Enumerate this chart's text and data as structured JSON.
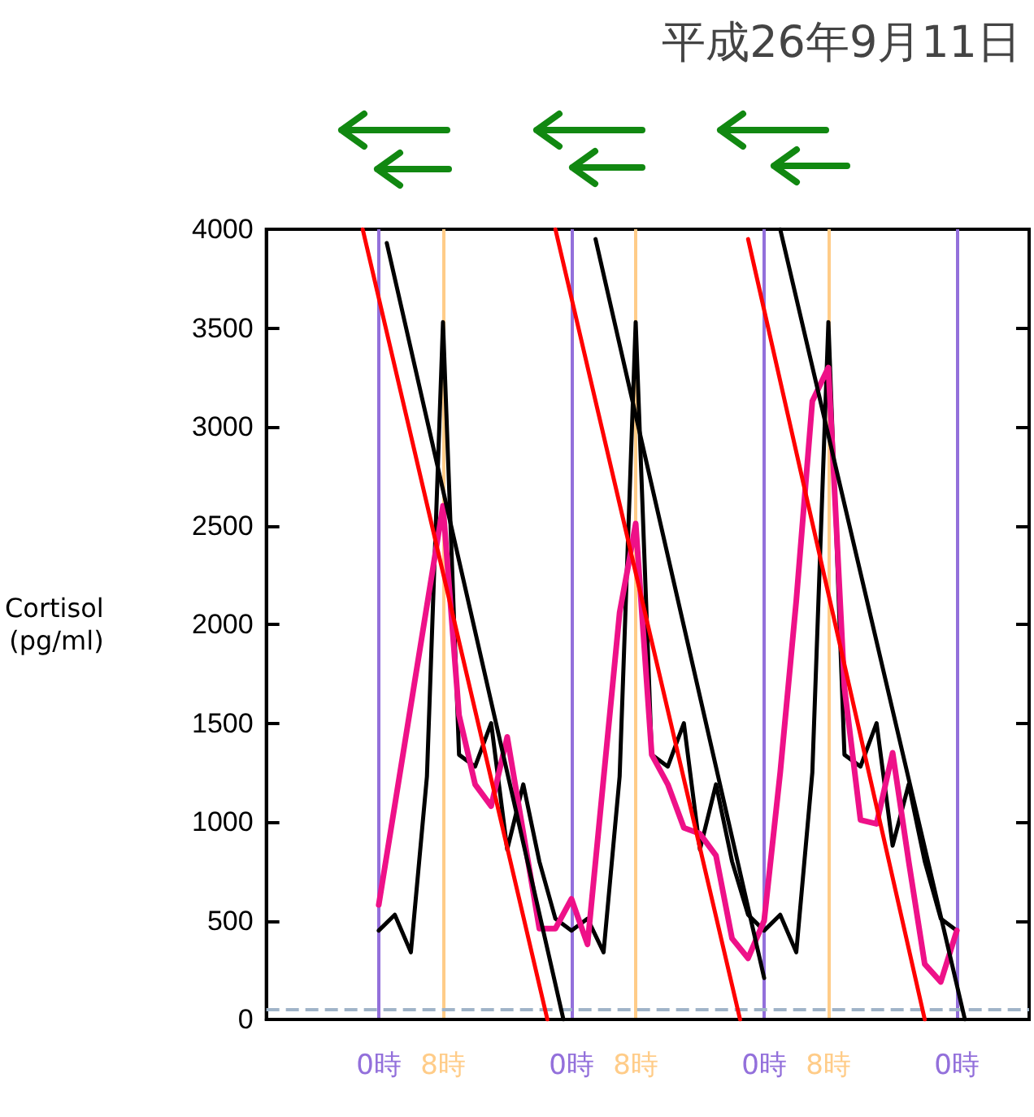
{
  "chart_data": {
    "type": "line",
    "ylabel": "Cortisol\n(pg/ml)",
    "annotations": [
      "平成26年9月11日"
    ],
    "categories": [
      null,
      null,
      null,
      null,
      null,
      null,
      null,
      null,
      null,
      null,
      null,
      null,
      null,
      null,
      "0時",
      null,
      null,
      null,
      null,
      null,
      null,
      null,
      "8時",
      null,
      null,
      null,
      null,
      null,
      null,
      null,
      null,
      null,
      null,
      null,
      null,
      null,
      null,
      null,
      "0時",
      null,
      null,
      null,
      null,
      null,
      null,
      null,
      "8時",
      null,
      null,
      null,
      null,
      null,
      null,
      null,
      null,
      null,
      null,
      null,
      null,
      null,
      null,
      null,
      "0時",
      null,
      null,
      null,
      null,
      null,
      null,
      null,
      "8時",
      null,
      null,
      null,
      null,
      null,
      null,
      null,
      null,
      null,
      null,
      null,
      null,
      null,
      null,
      null,
      "0時",
      null,
      null,
      null,
      null,
      null,
      null,
      null,
      null,
      null
    ],
    "ylim": [
      0,
      4000
    ],
    "yticks": [
      0,
      500,
      1000,
      1500,
      2000,
      2500,
      3000,
      3500,
      4000
    ],
    "grid": "x",
    "marker": "none",
    "line_style": "solid",
    "ref_lines": [
      {
        "axis": "y",
        "value": 50,
        "color": "#a0b4c8",
        "line_style": "dashed"
      }
    ],
    "series": [
      {
        "color": "#000000",
        "values": [
          null,
          null,
          null,
          null,
          null,
          null,
          null,
          null,
          null,
          null,
          null,
          null,
          null,
          null,
          450,
          null,
          530,
          null,
          340,
          null,
          1230,
          null,
          3530,
          null,
          1340,
          null,
          1280,
          null,
          1500,
          null,
          860,
          null,
          1190,
          null,
          800,
          null,
          510,
          null,
          450,
          null,
          510,
          null,
          340,
          null,
          1230,
          null,
          3530,
          null,
          1340,
          null,
          1280,
          null,
          1500,
          null,
          860,
          null,
          1190,
          null,
          800,
          null,
          530,
          null,
          450,
          null,
          530,
          null,
          340,
          null,
          1250,
          null,
          3530,
          null,
          1340,
          null,
          1280,
          null,
          1500,
          null,
          880,
          null,
          1190,
          null,
          800,
          null,
          510,
          null,
          450,
          null,
          null,
          null,
          null,
          null,
          null,
          null,
          null,
          null
        ]
      },
      {
        "color": "#ee1188",
        "values": [
          null,
          null,
          null,
          null,
          null,
          null,
          null,
          null,
          null,
          null,
          null,
          null,
          null,
          null,
          580,
          null,
          null,
          null,
          null,
          null,
          null,
          null,
          2600,
          null,
          1540,
          null,
          1190,
          null,
          1080,
          null,
          1430,
          null,
          null,
          null,
          460,
          null,
          460,
          null,
          610,
          null,
          380,
          null,
          null,
          null,
          2060,
          2280,
          2510,
          null,
          1340,
          null,
          1190,
          null,
          970,
          null,
          940,
          null,
          830,
          null,
          410,
          null,
          310,
          null,
          500,
          null,
          1250,
          null,
          2120,
          null,
          3130,
          null,
          3300,
          null,
          1680,
          null,
          1010,
          null,
          990,
          null,
          1350,
          null,
          800,
          null,
          280,
          null,
          190,
          null,
          450,
          null,
          null,
          null,
          null,
          null,
          null,
          null,
          null,
          null
        ]
      },
      {
        "color": "#ff0000",
        "values": [
          null,
          null,
          null,
          null,
          null,
          null,
          null,
          null,
          null,
          null,
          null,
          null,
          4000,
          null,
          null,
          null,
          null,
          null,
          null,
          null,
          null,
          null,
          null,
          null,
          null,
          null,
          null,
          null,
          null,
          null,
          null,
          null,
          null,
          null,
          null,
          0,
          null,
          null,
          null,
          null,
          null,
          null,
          null,
          null,
          null,
          null,
          null,
          null,
          null,
          null,
          null,
          null,
          null,
          null,
          null,
          null,
          null,
          null,
          null,
          null,
          null,
          null,
          null,
          null,
          null,
          null,
          null,
          null,
          null,
          null,
          null,
          null,
          null,
          null,
          null,
          null,
          null,
          null,
          null,
          null,
          null,
          null,
          null,
          null,
          null,
          null,
          null,
          null,
          null,
          null,
          null,
          null,
          null,
          null,
          null,
          null
        ]
      },
      {
        "color": "#000000",
        "values": [
          null,
          null,
          null,
          null,
          null,
          null,
          null,
          null,
          null,
          null,
          null,
          null,
          null,
          null,
          null,
          3930,
          null,
          null,
          null,
          null,
          null,
          null,
          null,
          null,
          null,
          null,
          null,
          null,
          null,
          null,
          null,
          null,
          null,
          null,
          null,
          null,
          null,
          0,
          null,
          null,
          null,
          null,
          null,
          null,
          null,
          null,
          null,
          null,
          null,
          null,
          null,
          null,
          null,
          null,
          null,
          null,
          null,
          null,
          null,
          null,
          null,
          null,
          null,
          null,
          null,
          null,
          null,
          null,
          null,
          null,
          null,
          null,
          null,
          null,
          null,
          null,
          null,
          null,
          null,
          null,
          null,
          null,
          null,
          null,
          null,
          null,
          null,
          null,
          null,
          null,
          null,
          null,
          null,
          null,
          null,
          null
        ]
      },
      {
        "color": "#ff0000",
        "values": [
          null,
          null,
          null,
          null,
          null,
          null,
          null,
          null,
          null,
          null,
          null,
          null,
          null,
          null,
          null,
          null,
          null,
          null,
          null,
          null,
          null,
          null,
          null,
          null,
          null,
          null,
          null,
          null,
          null,
          null,
          null,
          null,
          null,
          null,
          null,
          null,
          4000,
          null,
          null,
          null,
          null,
          null,
          null,
          null,
          null,
          null,
          null,
          null,
          null,
          null,
          null,
          null,
          null,
          null,
          null,
          null,
          null,
          null,
          null,
          0,
          null,
          null,
          null,
          null,
          null,
          null,
          null,
          null,
          null,
          null,
          null,
          null,
          null,
          null,
          null,
          null,
          null,
          null,
          null,
          null,
          null,
          null,
          null,
          null,
          null,
          null,
          null,
          null,
          null,
          null,
          null,
          null,
          null,
          null,
          null,
          null
        ]
      },
      {
        "color": "#000000",
        "values": [
          null,
          null,
          null,
          null,
          null,
          null,
          null,
          null,
          null,
          null,
          null,
          null,
          null,
          null,
          null,
          null,
          null,
          null,
          null,
          null,
          null,
          null,
          null,
          null,
          null,
          null,
          null,
          null,
          null,
          null,
          null,
          null,
          null,
          null,
          null,
          null,
          null,
          null,
          null,
          null,
          null,
          3950,
          null,
          null,
          null,
          null,
          null,
          null,
          null,
          null,
          null,
          null,
          null,
          null,
          null,
          null,
          null,
          null,
          null,
          null,
          null,
          null,
          210,
          null,
          null,
          null,
          null,
          null,
          null,
          null,
          null,
          null,
          null,
          null,
          null,
          null,
          null,
          null,
          null,
          null,
          null,
          null,
          null,
          null,
          null,
          null,
          null,
          null,
          null,
          null,
          null,
          null,
          null,
          null,
          null,
          null
        ]
      },
      {
        "color": "#ff0000",
        "values": [
          null,
          null,
          null,
          null,
          null,
          null,
          null,
          null,
          null,
          null,
          null,
          null,
          null,
          null,
          null,
          null,
          null,
          null,
          null,
          null,
          null,
          null,
          null,
          null,
          null,
          null,
          null,
          null,
          null,
          null,
          null,
          null,
          null,
          null,
          null,
          null,
          null,
          null,
          null,
          null,
          null,
          null,
          null,
          null,
          null,
          null,
          null,
          null,
          null,
          null,
          null,
          null,
          null,
          null,
          null,
          null,
          null,
          null,
          null,
          null,
          3950,
          null,
          null,
          null,
          null,
          null,
          null,
          null,
          null,
          null,
          null,
          null,
          null,
          null,
          null,
          null,
          null,
          null,
          null,
          null,
          null,
          null,
          0,
          null,
          null,
          null,
          null,
          null,
          null,
          null,
          null,
          null,
          null,
          null,
          null,
          null
        ]
      },
      {
        "color": "#000000",
        "values": [
          null,
          null,
          null,
          null,
          null,
          null,
          null,
          null,
          null,
          null,
          null,
          null,
          null,
          null,
          null,
          null,
          null,
          null,
          null,
          null,
          null,
          null,
          null,
          null,
          null,
          null,
          null,
          null,
          null,
          null,
          null,
          null,
          null,
          null,
          null,
          null,
          null,
          null,
          null,
          null,
          null,
          null,
          null,
          null,
          null,
          null,
          null,
          null,
          null,
          null,
          null,
          null,
          null,
          null,
          null,
          null,
          null,
          null,
          null,
          null,
          null,
          null,
          null,
          null,
          4000,
          null,
          null,
          null,
          null,
          null,
          null,
          null,
          null,
          null,
          null,
          null,
          null,
          null,
          null,
          null,
          null,
          null,
          null,
          null,
          null,
          null,
          null,
          0,
          null,
          null,
          null,
          null,
          null,
          null,
          null,
          null
        ]
      }
    ]
  }
}
